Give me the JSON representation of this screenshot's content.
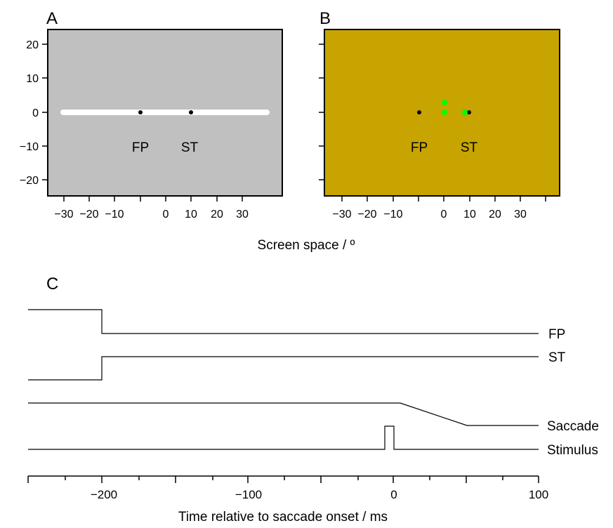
{
  "panel_a": {
    "letter": "A",
    "background": "#c0c0c0",
    "bar_color": "#ffffff",
    "bar_x": [
      -30,
      30
    ],
    "fp_label": "FP",
    "fp_x": -7.5,
    "st_label": "ST",
    "st_x": 7.5,
    "x_ticks": [
      "−30",
      "−20",
      "−10",
      "0",
      "10",
      "20",
      "30"
    ],
    "y_ticks": [
      "20",
      "10",
      "0",
      "−10",
      "−20"
    ]
  },
  "panel_b": {
    "letter": "B",
    "background": "#c8a400",
    "dot_color": "#00ff00",
    "fp_label": "FP",
    "fp_x": -7.5,
    "st_label": "ST",
    "st_x": 7.5,
    "green_dots": [
      [
        0,
        3
      ],
      [
        0,
        0
      ],
      [
        6,
        0
      ]
    ],
    "x_ticks": [
      "−30",
      "−20",
      "−10",
      "0",
      "10",
      "20",
      "30"
    ]
  },
  "space_xlabel": "Screen space / º",
  "panel_c": {
    "letter": "C",
    "traces": [
      "FP",
      "ST",
      "Saccade",
      "Stimulus"
    ],
    "x_ticks": [
      "−200",
      "−100",
      "0",
      "100"
    ],
    "xlabel": "Time relative to saccade onset / ms"
  }
}
